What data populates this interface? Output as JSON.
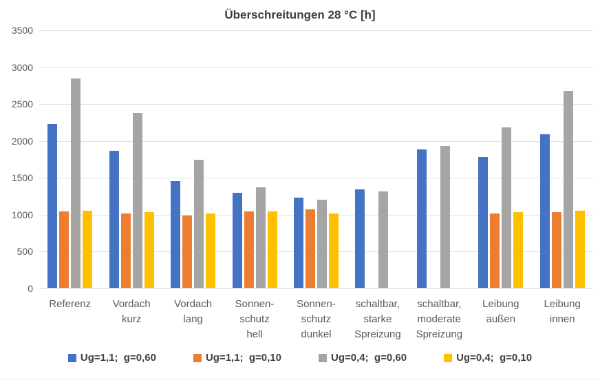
{
  "chart_data": {
    "type": "bar",
    "title": "Überschreitungen 28 °C [h]",
    "xlabel": "",
    "ylabel": "",
    "ylim": [
      0,
      3500
    ],
    "yticks": [
      0,
      500,
      1000,
      1500,
      2000,
      2500,
      3000,
      3500
    ],
    "grid": true,
    "legend_position": "bottom",
    "categories": [
      "Referenz",
      "Vordach\nkurz",
      "Vordach\nlang",
      "Sonnen-\nschutz\nhell",
      "Sonnen-\nschutz\ndunkel",
      "schaltbar,\nstarke\nSpreizung",
      "schaltbar,\nmoderate\nSpreizung",
      "Leibung\naußen",
      "Leibung\ninnen"
    ],
    "series": [
      {
        "name": "Ug=1,1;  g=0,60",
        "color": "#4472C4",
        "values": [
          2230,
          1870,
          1455,
          1295,
          1235,
          1340,
          1885,
          1785,
          2095
        ]
      },
      {
        "name": "Ug=1,1;  g=0,10",
        "color": "#ED7D31",
        "values": [
          1050,
          1015,
          990,
          1050,
          1075,
          0,
          0,
          1020,
          1035
        ]
      },
      {
        "name": "Ug=0,4;  g=0,60",
        "color": "#A5A5A5",
        "values": [
          2845,
          2385,
          1750,
          1375,
          1200,
          1315,
          1930,
          2185,
          2680
        ]
      },
      {
        "name": "Ug=0,4;  g=0,10",
        "color": "#FFC000",
        "values": [
          1055,
          1035,
          1015,
          1045,
          1020,
          0,
          0,
          1040,
          1055
        ]
      }
    ]
  },
  "colors": {
    "background": "#FFFFFF",
    "gridline": "#E2E2E2",
    "axis_line": "#D2D2D2",
    "axis_text": "#595959",
    "title_text": "#3F3F3F",
    "legend_text": "#404040",
    "divider": "#E6E6E6"
  }
}
